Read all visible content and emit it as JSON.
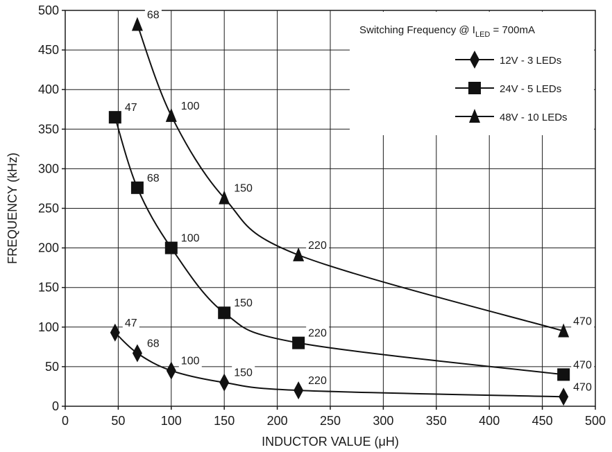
{
  "chart_data": {
    "type": "line",
    "xlabel": "INDUCTOR VALUE (μH)",
    "ylabel": "FREQUENCY (kHz)",
    "xlim": [
      0,
      500
    ],
    "ylim": [
      0,
      500
    ],
    "xticks": [
      0,
      50,
      100,
      150,
      200,
      250,
      300,
      350,
      400,
      450,
      500
    ],
    "yticks": [
      0,
      50,
      100,
      150,
      200,
      250,
      300,
      350,
      400,
      450,
      500
    ],
    "grid": true,
    "legend_position": "top-right",
    "legend_title": "Switching Frequency @ I",
    "legend_title_sub": "LED",
    "legend_title_tail": " = 700mA",
    "series": [
      {
        "name": "12V - 3 LEDs",
        "marker": "diamond",
        "x": [
          47,
          68,
          100,
          150,
          220,
          470
        ],
        "y": [
          93,
          67,
          45,
          30,
          20,
          12
        ],
        "labels": [
          "47",
          "68",
          "100",
          "150",
          "220",
          "470"
        ]
      },
      {
        "name": "24V - 5 LEDs",
        "marker": "square",
        "x": [
          47,
          68,
          100,
          150,
          220,
          470
        ],
        "y": [
          365,
          276,
          200,
          118,
          80,
          40
        ],
        "labels": [
          "47",
          "68",
          "100",
          "150",
          "220",
          "470"
        ]
      },
      {
        "name": "48V - 10 LEDs",
        "marker": "triangle",
        "x": [
          68,
          100,
          150,
          220,
          470
        ],
        "y": [
          482,
          367,
          263,
          191,
          95
        ],
        "labels": [
          "68",
          "100",
          "150",
          "220",
          "470"
        ]
      }
    ]
  }
}
